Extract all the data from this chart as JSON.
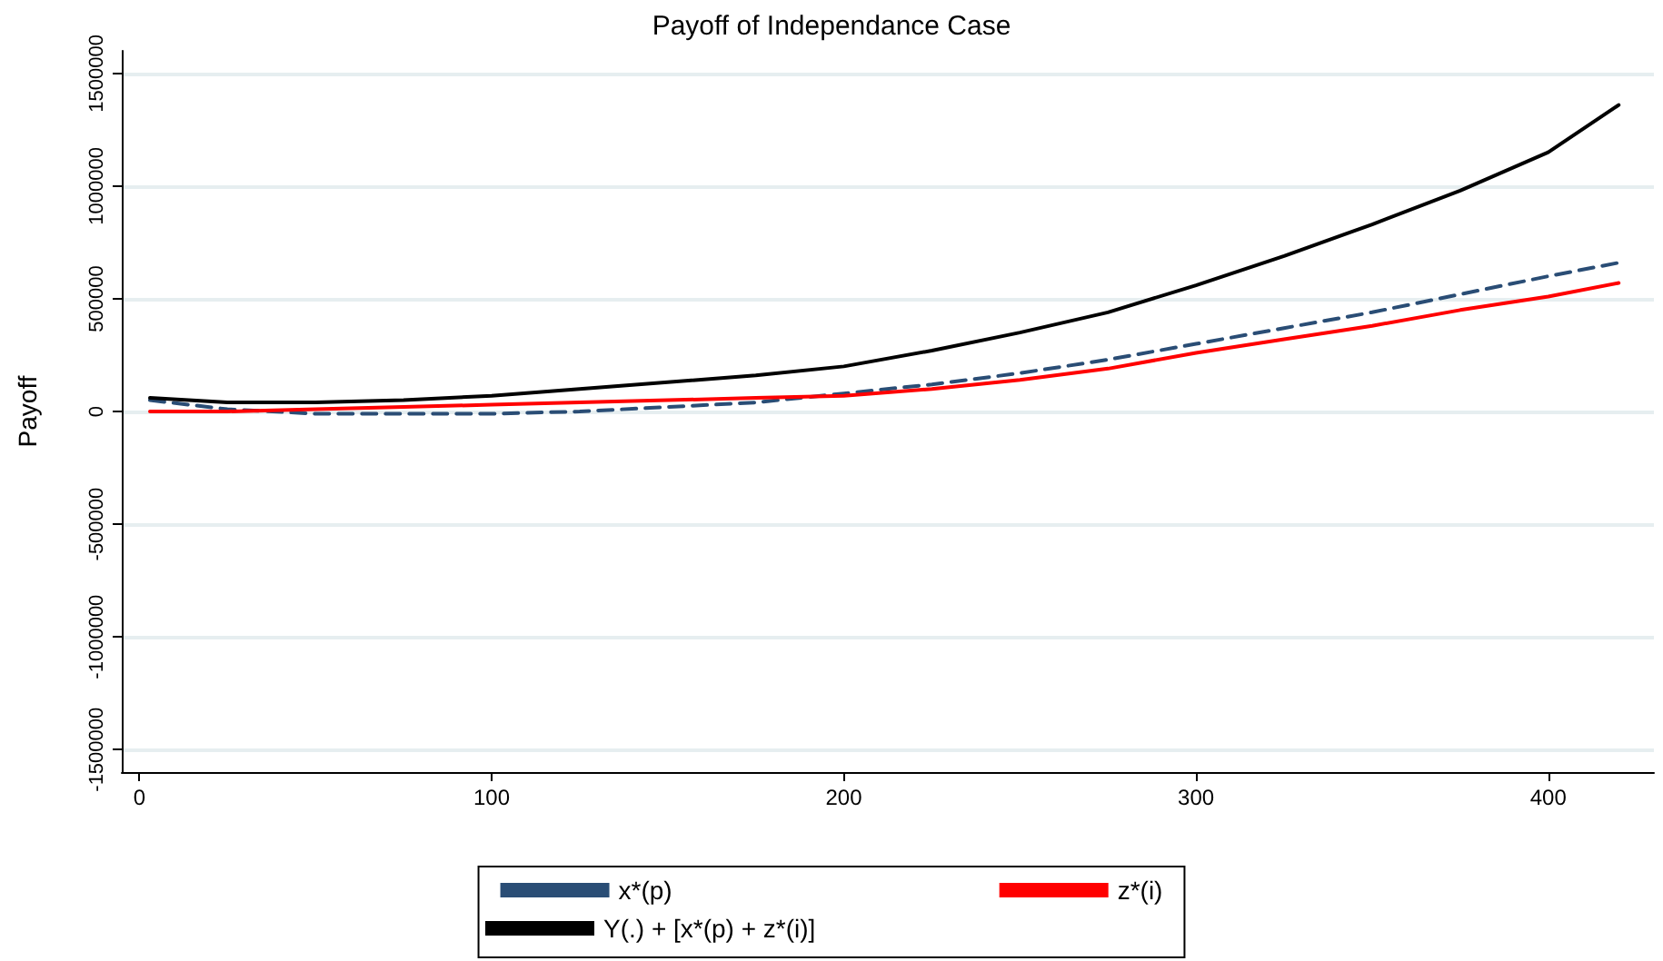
{
  "chart_data": {
    "type": "line",
    "title": "Payoff of Independance Case",
    "ylabel": "Payoff",
    "xlim": [
      -5,
      430
    ],
    "xticks": [
      0,
      100,
      200,
      300,
      400
    ],
    "ylim": [
      -1600000,
      1600000
    ],
    "yticks": [
      -1500000,
      -1000000,
      -500000,
      0,
      500000,
      1000000,
      1500000
    ],
    "grid": "y",
    "legend": "bottom",
    "marker": "none",
    "x": [
      3,
      25,
      50,
      75,
      100,
      125,
      150,
      175,
      200,
      225,
      250,
      275,
      300,
      325,
      350,
      375,
      400,
      420
    ],
    "series": [
      {
        "name": "x*(p)",
        "color": "#2a4d75",
        "line_style": "dashed",
        "values": [
          50000,
          10000,
          -10000,
          -10000,
          -10000,
          0,
          20000,
          40000,
          80000,
          120000,
          170000,
          230000,
          300000,
          370000,
          440000,
          520000,
          600000,
          660000
        ]
      },
      {
        "name": "z*(i)",
        "color": "#ff0000",
        "line_style": "solid",
        "values": [
          0,
          0,
          10000,
          20000,
          30000,
          40000,
          50000,
          60000,
          70000,
          100000,
          140000,
          190000,
          260000,
          320000,
          380000,
          450000,
          510000,
          570000
        ]
      },
      {
        "name": "Y(.) + [x*(p) + z*(i)]",
        "color": "#000000",
        "line_style": "solid",
        "values": [
          60000,
          40000,
          40000,
          50000,
          70000,
          100000,
          130000,
          160000,
          200000,
          270000,
          350000,
          440000,
          560000,
          690000,
          830000,
          980000,
          1150000,
          1360000
        ]
      }
    ]
  }
}
